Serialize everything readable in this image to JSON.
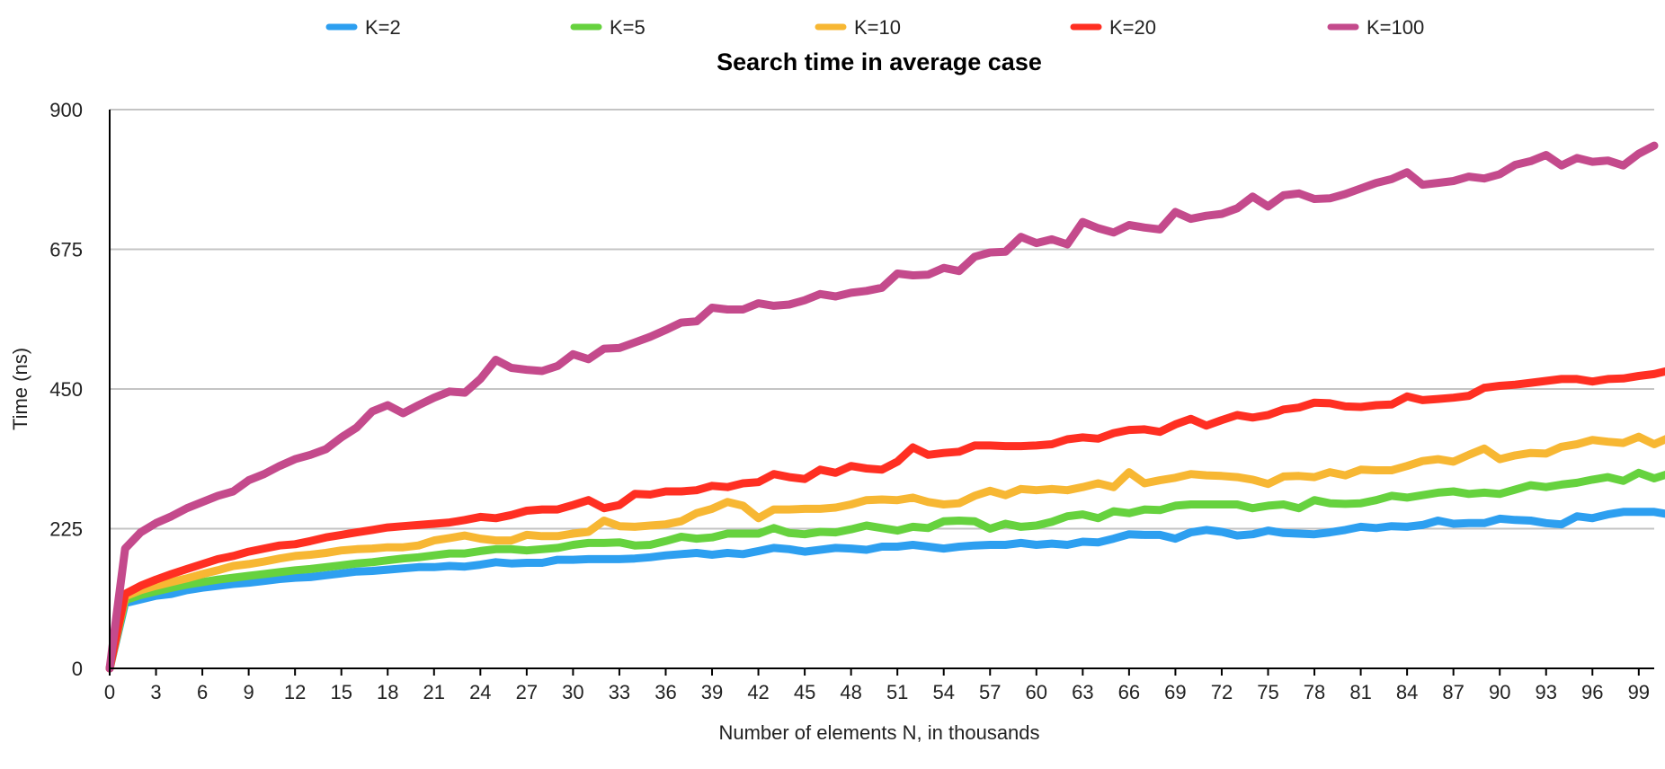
{
  "chart_data": {
    "type": "line",
    "title": "Search time in average case",
    "xlabel": "Number of elements N, in thousands",
    "ylabel": "Time (ns)",
    "xlim": [
      0,
      100
    ],
    "ylim": [
      0,
      900
    ],
    "yticks": [
      0,
      225,
      450,
      675,
      900
    ],
    "xticks": [
      0,
      3,
      6,
      9,
      12,
      15,
      18,
      21,
      24,
      27,
      30,
      33,
      36,
      39,
      42,
      45,
      48,
      51,
      54,
      57,
      60,
      63,
      66,
      69,
      72,
      75,
      78,
      81,
      84,
      87,
      90,
      93,
      96,
      99
    ],
    "grid": true,
    "legend": "top",
    "x_start": 0,
    "x_step": 1,
    "series": [
      {
        "name": "K=2",
        "color": "#2d9ff0",
        "values": [
          0,
          105,
          111,
          117,
          120,
          126,
          130,
          133,
          136,
          138,
          141,
          144,
          146,
          147,
          150,
          153,
          156,
          157,
          159,
          161,
          163,
          163,
          165,
          164,
          167,
          171,
          169,
          170,
          170,
          175,
          175,
          176,
          176,
          176,
          177,
          179,
          182,
          184,
          186,
          183,
          186,
          184,
          189,
          194,
          192,
          188,
          191,
          194,
          193,
          191,
          196,
          196,
          199,
          196,
          193,
          196,
          198,
          199,
          199,
          202,
          199,
          201,
          199,
          204,
          203,
          209,
          216,
          215,
          215,
          209,
          219,
          223,
          220,
          214,
          216,
          222,
          218,
          217,
          216,
          219,
          223,
          228,
          226,
          229,
          228,
          231,
          238,
          233,
          234,
          234,
          241,
          239,
          238,
          234,
          232,
          245,
          242,
          248,
          252,
          252,
          252,
          248
        ]
      },
      {
        "name": "K=5",
        "color": "#66d23e",
        "values": [
          0,
          110,
          118,
          124,
          130,
          135,
          139,
          143,
          146,
          149,
          152,
          155,
          158,
          160,
          163,
          166,
          169,
          171,
          174,
          177,
          179,
          182,
          185,
          185,
          189,
          192,
          192,
          190,
          192,
          194,
          199,
          202,
          202,
          203,
          198,
          199,
          205,
          212,
          209,
          211,
          217,
          217,
          217,
          226,
          218,
          216,
          220,
          219,
          224,
          230,
          226,
          222,
          228,
          226,
          237,
          238,
          237,
          225,
          233,
          228,
          230,
          236,
          245,
          248,
          242,
          253,
          250,
          256,
          255,
          262,
          264,
          264,
          264,
          264,
          258,
          262,
          264,
          258,
          271,
          266,
          265,
          266,
          271,
          278,
          275,
          279,
          283,
          285,
          281,
          283,
          281,
          288,
          295,
          292,
          296,
          299,
          304,
          308,
          302,
          315,
          306,
          314
        ]
      },
      {
        "name": "K=10",
        "color": "#f7b733",
        "values": [
          0,
          116,
          126,
          133,
          139,
          145,
          152,
          158,
          165,
          168,
          172,
          177,
          181,
          183,
          186,
          190,
          192,
          193,
          195,
          195,
          198,
          206,
          210,
          214,
          209,
          206,
          206,
          215,
          213,
          213,
          217,
          220,
          238,
          229,
          228,
          230,
          232,
          237,
          250,
          257,
          268,
          262,
          242,
          256,
          256,
          257,
          257,
          259,
          264,
          271,
          272,
          271,
          275,
          268,
          264,
          266,
          278,
          286,
          279,
          289,
          287,
          289,
          287,
          292,
          298,
          292,
          316,
          298,
          303,
          307,
          313,
          311,
          310,
          308,
          304,
          297,
          309,
          310,
          308,
          316,
          311,
          320,
          319,
          319,
          326,
          334,
          337,
          333,
          344,
          354,
          337,
          343,
          347,
          346,
          357,
          361,
          368,
          365,
          363,
          373,
          361,
          372
        ]
      },
      {
        "name": "K=20",
        "color": "#ff2f22",
        "values": [
          0,
          120,
          133,
          143,
          152,
          160,
          168,
          176,
          181,
          188,
          193,
          198,
          200,
          205,
          211,
          215,
          219,
          223,
          227,
          229,
          231,
          233,
          235,
          239,
          244,
          242,
          247,
          254,
          256,
          256,
          263,
          271,
          258,
          263,
          281,
          280,
          285,
          285,
          287,
          294,
          292,
          298,
          300,
          313,
          308,
          305,
          320,
          315,
          326,
          322,
          320,
          333,
          356,
          344,
          347,
          349,
          359,
          359,
          358,
          358,
          359,
          361,
          369,
          372,
          370,
          379,
          384,
          385,
          381,
          393,
          402,
          391,
          400,
          408,
          404,
          408,
          417,
          420,
          428,
          427,
          422,
          421,
          424,
          425,
          438,
          432,
          434,
          436,
          439,
          452,
          455,
          457,
          460,
          463,
          466,
          466,
          462,
          466,
          467,
          471,
          474,
          480
        ]
      },
      {
        "name": "K=100",
        "color": "#c44a8c",
        "values": [
          0,
          193,
          219,
          234,
          245,
          258,
          268,
          278,
          285,
          303,
          313,
          326,
          337,
          344,
          353,
          372,
          388,
          414,
          424,
          411,
          424,
          436,
          446,
          444,
          466,
          497,
          484,
          481,
          479,
          487,
          506,
          498,
          515,
          516,
          525,
          534,
          545,
          557,
          559,
          581,
          578,
          578,
          588,
          584,
          586,
          593,
          603,
          599,
          605,
          608,
          613,
          636,
          633,
          634,
          645,
          640,
          663,
          670,
          671,
          695,
          685,
          691,
          683,
          719,
          709,
          702,
          714,
          710,
          707,
          735,
          724,
          729,
          732,
          741,
          760,
          744,
          762,
          765,
          756,
          757,
          764,
          773,
          782,
          788,
          799,
          779,
          782,
          785,
          792,
          789,
          796,
          811,
          817,
          827,
          810,
          822,
          816,
          818,
          810,
          829,
          842
        ]
      }
    ]
  }
}
